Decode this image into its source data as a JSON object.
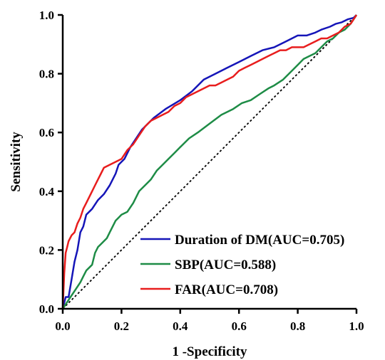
{
  "chart_data": {
    "type": "line",
    "xlabel": "1 -Specificity",
    "ylabel": "Sensitivity",
    "xlim": [
      0,
      1
    ],
    "ylim": [
      0,
      1
    ],
    "xticks": [
      "0.0",
      "0.2",
      "0.4",
      "0.6",
      "0.8",
      "1.0"
    ],
    "yticks": [
      "0.0",
      "0.2",
      "0.4",
      "0.6",
      "0.8",
      "1.0"
    ],
    "grid": false,
    "legend_position": "bottom-right",
    "reference_line": {
      "style": "dotted",
      "color": "#000000",
      "x": [
        0,
        1
      ],
      "y": [
        0,
        1
      ]
    },
    "series": [
      {
        "name": "Duration of DM(AUC=0.705)",
        "color": "#1515b8",
        "x": [
          0,
          0.01,
          0.02,
          0.03,
          0.04,
          0.05,
          0.06,
          0.07,
          0.08,
          0.1,
          0.12,
          0.14,
          0.16,
          0.18,
          0.19,
          0.21,
          0.23,
          0.25,
          0.27,
          0.29,
          0.31,
          0.35,
          0.4,
          0.44,
          0.48,
          0.52,
          0.56,
          0.6,
          0.64,
          0.68,
          0.72,
          0.76,
          0.8,
          0.83,
          0.86,
          0.88,
          0.91,
          0.93,
          0.95,
          0.97,
          0.99,
          1.0
        ],
        "y": [
          0,
          0.04,
          0.04,
          0.1,
          0.16,
          0.2,
          0.26,
          0.28,
          0.32,
          0.34,
          0.37,
          0.39,
          0.42,
          0.46,
          0.49,
          0.51,
          0.55,
          0.58,
          0.61,
          0.63,
          0.65,
          0.68,
          0.71,
          0.74,
          0.78,
          0.8,
          0.82,
          0.84,
          0.86,
          0.88,
          0.89,
          0.91,
          0.93,
          0.93,
          0.94,
          0.95,
          0.96,
          0.97,
          0.975,
          0.985,
          0.99,
          1.0
        ]
      },
      {
        "name": "SBP(AUC=0.588)",
        "color": "#1e8c46",
        "x": [
          0,
          0.02,
          0.04,
          0.06,
          0.07,
          0.08,
          0.1,
          0.11,
          0.12,
          0.13,
          0.15,
          0.16,
          0.17,
          0.18,
          0.19,
          0.2,
          0.22,
          0.24,
          0.26,
          0.28,
          0.3,
          0.32,
          0.34,
          0.36,
          0.38,
          0.4,
          0.43,
          0.46,
          0.5,
          0.54,
          0.58,
          0.61,
          0.64,
          0.67,
          0.7,
          0.72,
          0.75,
          0.78,
          0.8,
          0.82,
          0.84,
          0.86,
          0.88,
          0.9,
          0.92,
          0.94,
          0.96,
          0.98,
          1.0
        ],
        "y": [
          0,
          0.03,
          0.06,
          0.09,
          0.11,
          0.13,
          0.15,
          0.19,
          0.21,
          0.22,
          0.24,
          0.26,
          0.28,
          0.3,
          0.31,
          0.32,
          0.33,
          0.36,
          0.4,
          0.42,
          0.44,
          0.47,
          0.49,
          0.51,
          0.53,
          0.55,
          0.58,
          0.6,
          0.63,
          0.66,
          0.68,
          0.7,
          0.71,
          0.73,
          0.75,
          0.76,
          0.78,
          0.81,
          0.83,
          0.85,
          0.86,
          0.87,
          0.89,
          0.91,
          0.92,
          0.94,
          0.95,
          0.97,
          1.0
        ]
      },
      {
        "name": "FAR(AUC=0.708)",
        "color": "#e81d1d",
        "x": [
          0,
          0.005,
          0.01,
          0.015,
          0.02,
          0.03,
          0.04,
          0.05,
          0.06,
          0.07,
          0.08,
          0.09,
          0.1,
          0.11,
          0.12,
          0.13,
          0.14,
          0.16,
          0.18,
          0.2,
          0.22,
          0.24,
          0.26,
          0.28,
          0.3,
          0.32,
          0.34,
          0.36,
          0.38,
          0.4,
          0.42,
          0.44,
          0.46,
          0.48,
          0.5,
          0.52,
          0.54,
          0.56,
          0.58,
          0.6,
          0.62,
          0.64,
          0.66,
          0.68,
          0.7,
          0.72,
          0.74,
          0.76,
          0.78,
          0.8,
          0.82,
          0.84,
          0.86,
          0.88,
          0.9,
          0.92,
          0.94,
          0.96,
          0.98,
          1.0
        ],
        "y": [
          0,
          0.12,
          0.19,
          0.21,
          0.23,
          0.25,
          0.26,
          0.29,
          0.31,
          0.34,
          0.36,
          0.38,
          0.4,
          0.42,
          0.44,
          0.46,
          0.48,
          0.49,
          0.5,
          0.51,
          0.54,
          0.56,
          0.59,
          0.62,
          0.64,
          0.65,
          0.66,
          0.67,
          0.69,
          0.7,
          0.72,
          0.73,
          0.74,
          0.75,
          0.76,
          0.76,
          0.77,
          0.78,
          0.79,
          0.81,
          0.82,
          0.83,
          0.84,
          0.85,
          0.86,
          0.87,
          0.88,
          0.88,
          0.89,
          0.89,
          0.89,
          0.9,
          0.91,
          0.92,
          0.92,
          0.93,
          0.94,
          0.96,
          0.97,
          1.0
        ]
      }
    ]
  }
}
